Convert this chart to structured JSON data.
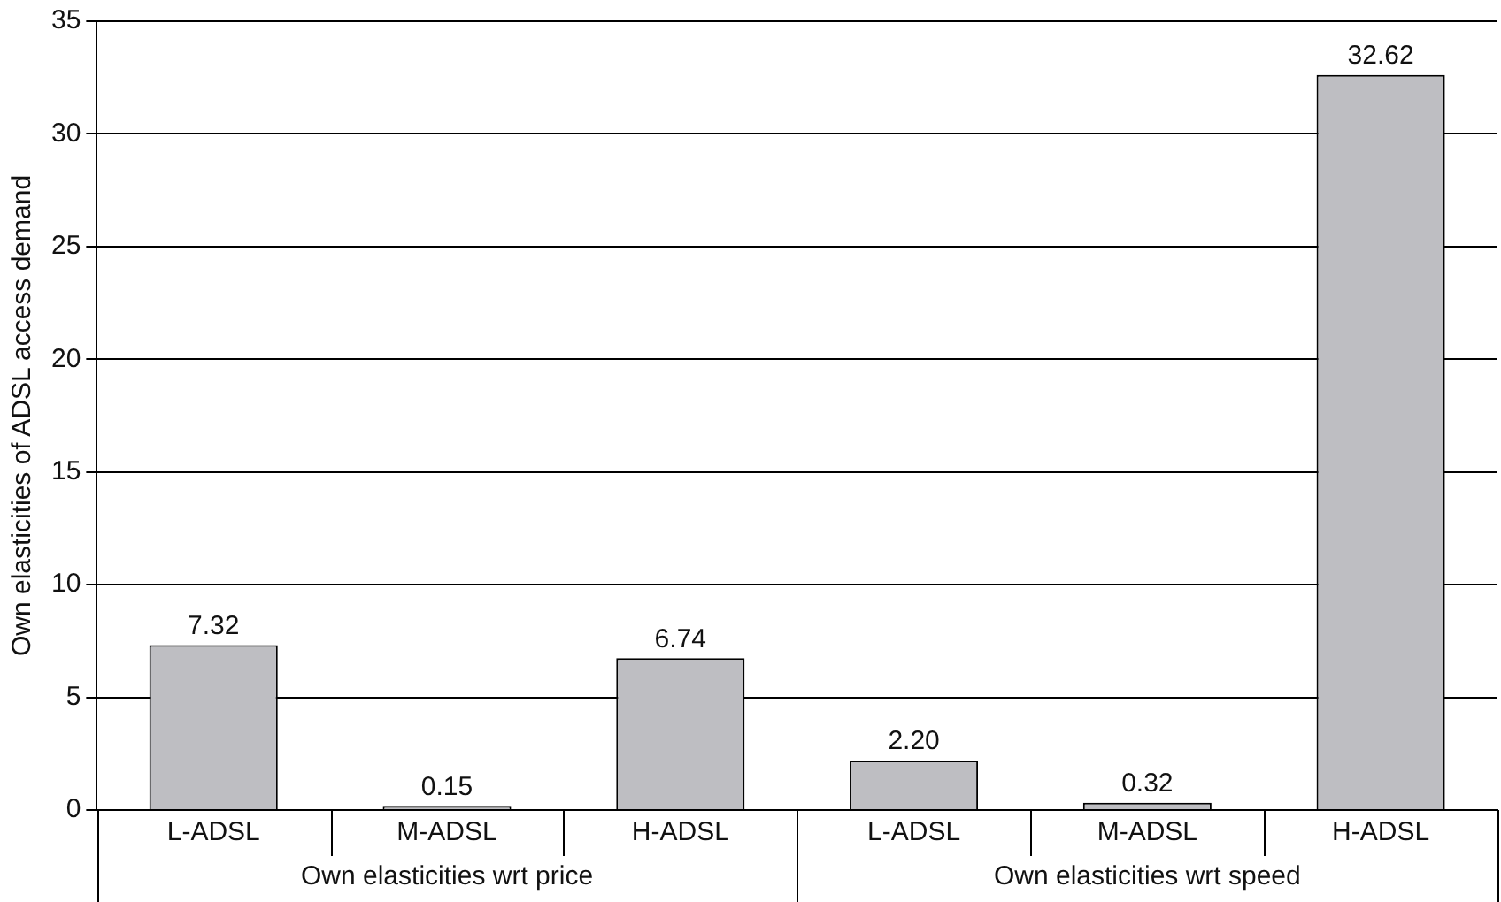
{
  "chart_data": {
    "type": "bar",
    "ylabel": "Own elasticities of ADSL access demand",
    "categories": [
      "L-ADSL",
      "M-ADSL",
      "H-ADSL",
      "L-ADSL",
      "M-ADSL",
      "H-ADSL"
    ],
    "values": [
      7.32,
      0.15,
      6.74,
      2.2,
      0.32,
      32.62
    ],
    "value_labels": [
      "7.32",
      "0.15",
      "6.74",
      "2.20",
      "0.32",
      "32.62"
    ],
    "color": "#bebec2",
    "ylim": [
      0,
      35
    ],
    "yticks": [
      0,
      5,
      10,
      15,
      20,
      25,
      30,
      35
    ],
    "grid": "y",
    "legend": false,
    "annotations": [
      "Own elasticities wrt price",
      "Own elasticities wrt speed"
    ]
  }
}
